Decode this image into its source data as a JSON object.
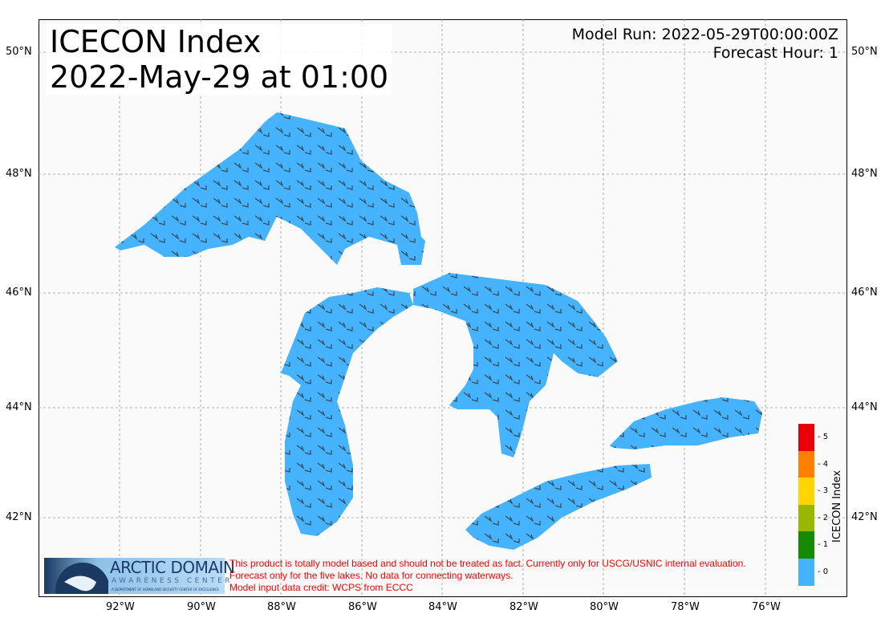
{
  "title": {
    "line1": "ICECON Index",
    "line2": "2022-May-29 at 01:00"
  },
  "run": {
    "model_run": "Model Run: 2022-05-29T00:00:00Z",
    "forecast_hour": "Forecast Hour: 1"
  },
  "axes": {
    "lon_ticks": [
      "92°W",
      "90°W",
      "88°W",
      "86°W",
      "84°W",
      "82°W",
      "80°W",
      "78°W",
      "76°W"
    ],
    "lat_ticks": [
      "50°N",
      "48°N",
      "46°N",
      "44°N",
      "42°N"
    ]
  },
  "colorbar": {
    "label": "ICECON Index",
    "levels": [
      "5",
      "4",
      "3",
      "2",
      "1",
      "0"
    ],
    "colors": [
      "#e8000b",
      "#ff7f00",
      "#ffd700",
      "#9ab700",
      "#168a00",
      "#45b3ff"
    ]
  },
  "logo": {
    "line1": "ARCTIC DOMAIN",
    "line2": "AWARENESS CENTER",
    "line3": "A DEPARTMENT OF HOMELAND SECURITY CENTER OF EXCELLENCE"
  },
  "disclaimer": [
    "This product is totally model based and should not be treated as fact. Currently only for USCG/USNIC internal evaluation.",
    "Forecast only for the five lakes. No data for connecting waterways.",
    "Model input data credit: WCPS from ECCC"
  ],
  "lake_color": "#45b3ff",
  "lakes": [
    "Superior",
    "Michigan",
    "Huron",
    "Erie",
    "Ontario"
  ]
}
